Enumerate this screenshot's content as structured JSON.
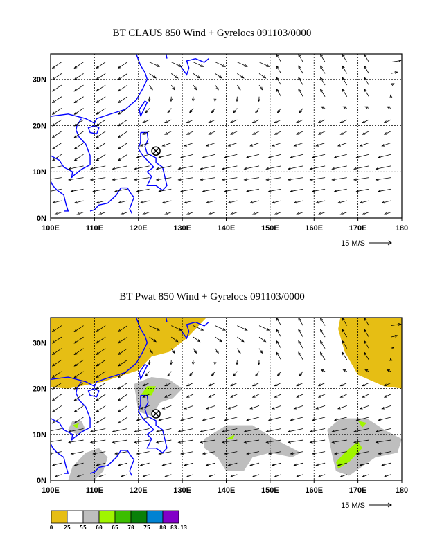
{
  "panels": [
    {
      "title": "BT CLAUS 850 Wind + Gyrelocs 091103/0000",
      "shaded": false
    },
    {
      "title": "BT Pwat 850 Wind + Gyrelocs 091103/0000",
      "shaded": true
    }
  ],
  "axes": {
    "lon_labels": [
      "100E",
      "110E",
      "120E",
      "130E",
      "140E",
      "150E",
      "160E",
      "170E",
      "180"
    ],
    "lat_labels": [
      "0N",
      "10N",
      "20N",
      "30N"
    ],
    "lon_range": [
      100,
      180
    ],
    "lat_range": [
      0,
      35.5
    ]
  },
  "vector_ref_label": "15 M/S",
  "gyre_location": {
    "lon": 124,
    "lat": 14.5
  },
  "colorbar": {
    "colors": [
      "#e6be14",
      "#ffffff",
      "#bebebe",
      "#a0f500",
      "#3cbe00",
      "#0a800a",
      "#0082d2",
      "#8200c8"
    ],
    "labels": [
      "0",
      "25",
      "55",
      "60",
      "65",
      "70",
      "75",
      "80",
      "83.13"
    ]
  },
  "colors": {
    "coast": "#0000ff",
    "grid": "#000000"
  }
}
